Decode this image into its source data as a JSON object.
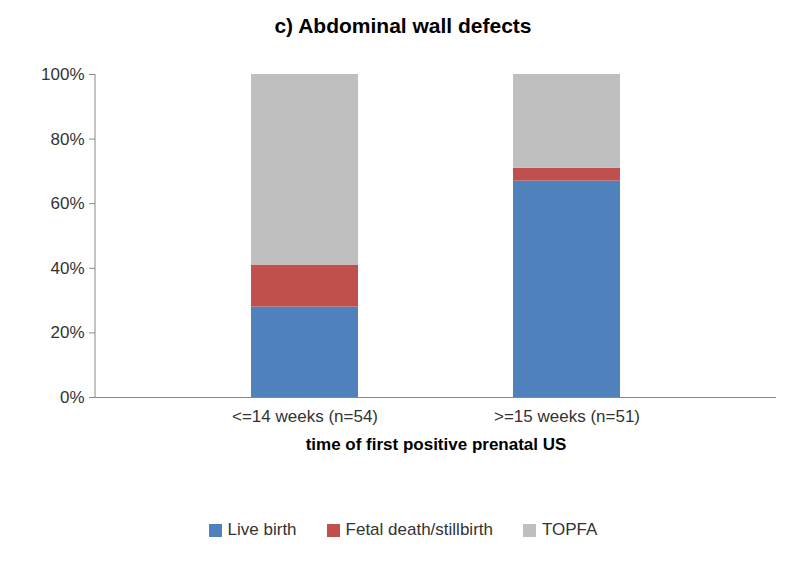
{
  "chart_data": {
    "type": "bar",
    "stacked": true,
    "title": "c) Abdominal wall defects",
    "x_label": "time of first positive prenatal US",
    "categories": [
      "<=14 weeks (n=54)",
      ">=15 weeks (n=51)"
    ],
    "series": [
      {
        "name": "Live birth",
        "color": "#4f81bd",
        "values": [
          28,
          67
        ]
      },
      {
        "name": "Fetal death/stillbirth",
        "color": "#c0504d",
        "values": [
          13,
          4
        ]
      },
      {
        "name": "TOPFA",
        "color": "#bfbfbf",
        "values": [
          59,
          29
        ]
      }
    ],
    "ylim": [
      0,
      100
    ],
    "yticks": [
      {
        "value": 0,
        "label": "0%"
      },
      {
        "value": 20,
        "label": "20%"
      },
      {
        "value": 40,
        "label": "40%"
      },
      {
        "value": 60,
        "label": "60%"
      },
      {
        "value": 80,
        "label": "80%"
      },
      {
        "value": 100,
        "label": "100%"
      }
    ],
    "legend": "bottom",
    "grid": false
  }
}
